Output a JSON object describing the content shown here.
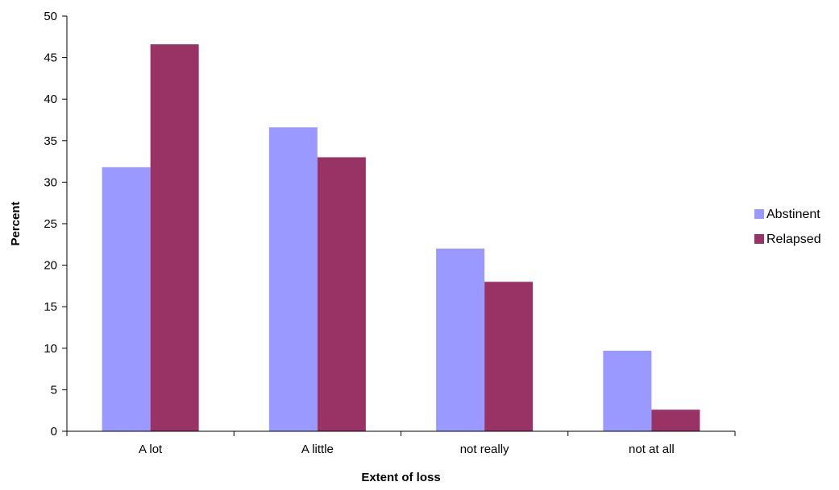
{
  "chart_data": {
    "type": "bar",
    "title": "",
    "xlabel": "Extent of loss",
    "ylabel": "Percent",
    "categories": [
      "A lot",
      "A little",
      "not really",
      "not at all"
    ],
    "series": [
      {
        "name": "Abstinent",
        "color": "#9999ff",
        "values": [
          31.8,
          36.6,
          22.0,
          9.7
        ]
      },
      {
        "name": "Relapsed",
        "color": "#993366",
        "values": [
          46.6,
          33.0,
          18.0,
          2.6
        ]
      }
    ],
    "ylim": [
      0,
      50
    ],
    "yticks": [
      0,
      5,
      10,
      15,
      20,
      25,
      30,
      35,
      40,
      45,
      50
    ],
    "grid": false,
    "legend_position": "right"
  }
}
